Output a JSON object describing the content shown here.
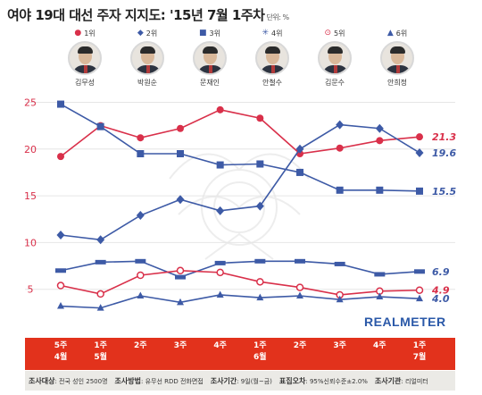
{
  "header": {
    "title": "여야 19대 대선 주자 지지도: '15년 7월 1주차",
    "unit": "단위: %"
  },
  "legend": [
    {
      "label": "1위",
      "color": "#d9304a",
      "shape": "circle"
    },
    {
      "label": "2위",
      "color": "#3d5aa6",
      "shape": "diamond"
    },
    {
      "label": "3위",
      "color": "#3d5aa6",
      "shape": "square"
    },
    {
      "label": "4위",
      "color": "#3d5aa6",
      "shape": "asterisk"
    },
    {
      "label": "5위",
      "color": "#d9304a",
      "shape": "circle-open"
    },
    {
      "label": "6위",
      "color": "#3d5aa6",
      "shape": "triangle"
    }
  ],
  "candidates": [
    "김무성",
    "박원순",
    "문재인",
    "안철수",
    "김문수",
    "안희정"
  ],
  "brand": "REALMETER",
  "footer": {
    "items": [
      {
        "label": "조사대상",
        "value": "전국 성인 2500명"
      },
      {
        "label": "조사방법",
        "value": "유무선 RDD 전화면접"
      },
      {
        "label": "조사기간",
        "value": "9일(월~금)"
      },
      {
        "label": "표집오차",
        "value": "95%신뢰수준±2.0%"
      },
      {
        "label": "조사기관",
        "value": "리얼미터"
      }
    ]
  },
  "chart_data": {
    "type": "line",
    "categories": [
      "5주\n4월",
      "1주\n5월",
      "2주",
      "3주",
      "4주",
      "1주\n6월",
      "2주",
      "3주",
      "4주",
      "1주\n7월"
    ],
    "ylim": [
      0,
      26
    ],
    "yticks": [
      5,
      10,
      15,
      20,
      25
    ],
    "grid": true,
    "series": [
      {
        "name": "1위",
        "color": "#d9304a",
        "marker": "circle",
        "values": [
          19.2,
          22.5,
          21.2,
          22.2,
          24.2,
          23.3,
          19.5,
          20.1,
          20.9,
          21.3
        ],
        "end_label": "21.3"
      },
      {
        "name": "2위",
        "color": "#3d5aa6",
        "marker": "diamond",
        "values": [
          10.8,
          10.3,
          12.9,
          14.6,
          13.4,
          13.9,
          20.0,
          22.6,
          22.2,
          19.6
        ],
        "end_label": "19.6"
      },
      {
        "name": "3위",
        "color": "#3d5aa6",
        "marker": "square",
        "values": [
          24.8,
          22.4,
          19.5,
          19.5,
          18.3,
          18.4,
          17.5,
          15.6,
          15.6,
          15.5
        ],
        "end_label": "15.5"
      },
      {
        "name": "4위",
        "color": "#3d5aa6",
        "marker": "asterisk",
        "values": [
          7.0,
          7.9,
          8.0,
          6.3,
          7.8,
          8.0,
          8.0,
          7.7,
          6.6,
          6.9
        ],
        "end_label": "6.9"
      },
      {
        "name": "5위",
        "color": "#d9304a",
        "marker": "circle-open",
        "values": [
          5.4,
          4.5,
          6.5,
          7.0,
          6.8,
          5.8,
          5.2,
          4.4,
          4.8,
          4.9
        ],
        "end_label": "4.9"
      },
      {
        "name": "6위",
        "color": "#3d5aa6",
        "marker": "triangle",
        "values": [
          3.2,
          3.0,
          4.3,
          3.6,
          4.4,
          4.1,
          4.3,
          3.9,
          4.2,
          4.0
        ],
        "end_label": "4.0"
      }
    ]
  }
}
